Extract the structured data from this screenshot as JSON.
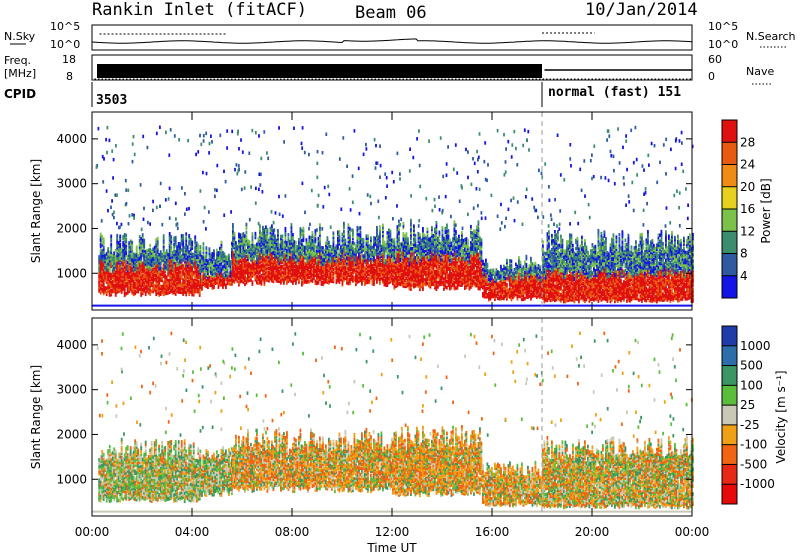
{
  "header": {
    "station": "Rankin Inlet (fitACF)",
    "beam": "Beam 06",
    "date": "10/Jan/2014"
  },
  "aux_panels": {
    "left_nsky": "N.Sky",
    "left_freq_1": "Freq.",
    "left_freq_2": "[MHz]",
    "cpid": "CPID",
    "right_nsearch": "N.Search",
    "right_nave": "Nave",
    "noise_ticks": [
      "10^5",
      "10^0"
    ],
    "freq_ticks": [
      "18",
      "8"
    ],
    "nave_ticks": [
      "60",
      "0"
    ],
    "cpid_label_1": "3503",
    "cpid_label_2": "normal (fast) 151"
  },
  "chart_data": [
    {
      "type": "heatmap",
      "panel": "power",
      "ylabel": "Slant Range [km]",
      "y_ticks": [
        "1000",
        "2000",
        "3000",
        "4000"
      ],
      "ylim": [
        180,
        4600
      ],
      "xlim": [
        0,
        24
      ],
      "colorbar": {
        "label": "Power [dB]",
        "ticks": [
          "4",
          "8",
          "12",
          "16",
          "20",
          "24",
          "28"
        ],
        "colors": [
          "#1414e6",
          "#2d5aa0",
          "#3c8c6e",
          "#7ac24a",
          "#e6d21e",
          "#f08c14",
          "#e85a10",
          "#e01010"
        ]
      },
      "bands": [
        {
          "x0": 0.25,
          "x1": 4.3,
          "lo": 550,
          "hi": 1650,
          "core": 0.55
        },
        {
          "x0": 4.3,
          "x1": 5.6,
          "lo": 700,
          "hi": 1500,
          "core": 0.3
        },
        {
          "x0": 5.6,
          "x1": 12.0,
          "lo": 800,
          "hi": 1850,
          "core": 0.5
        },
        {
          "x0": 12.0,
          "x1": 15.6,
          "lo": 700,
          "hi": 1900,
          "core": 0.55
        },
        {
          "x0": 15.6,
          "x1": 18.0,
          "lo": 450,
          "hi": 1200,
          "core": 0.6
        },
        {
          "x0": 18.0,
          "x1": 24.0,
          "lo": 400,
          "hi": 1700,
          "core": 0.45
        }
      ],
      "scatter_cells": 420
    },
    {
      "type": "heatmap",
      "panel": "velocity",
      "ylabel": "Slant Range [km]",
      "y_ticks": [
        "1000",
        "2000",
        "3000",
        "4000"
      ],
      "ylim": [
        180,
        4600
      ],
      "xlim": [
        0,
        24
      ],
      "colorbar": {
        "label": "Velocity [m s⁻¹]",
        "ticks": [
          "1000",
          "500",
          "100",
          "25",
          "-25",
          "-100",
          "-500",
          "-1000"
        ],
        "colors": [
          "#1e3caa",
          "#2d6eaa",
          "#3c9664",
          "#5abe3c",
          "#c8c8b4",
          "#f0a014",
          "#f06414",
          "#e62814",
          "#e60a0a"
        ]
      },
      "bands": [
        {
          "x0": 0.25,
          "x1": 4.3,
          "lo": 550,
          "hi": 1650,
          "core": 0.3
        },
        {
          "x0": 4.3,
          "x1": 5.6,
          "lo": 700,
          "hi": 1500,
          "core": 0.3
        },
        {
          "x0": 5.6,
          "x1": 12.0,
          "lo": 800,
          "hi": 1850,
          "core": 0.6
        },
        {
          "x0": 12.0,
          "x1": 15.6,
          "lo": 700,
          "hi": 1900,
          "core": 0.7
        },
        {
          "x0": 15.6,
          "x1": 18.0,
          "lo": 450,
          "hi": 1200,
          "core": 0.6
        },
        {
          "x0": 18.0,
          "x1": 24.0,
          "lo": 400,
          "hi": 1700,
          "core": 0.5
        }
      ],
      "scatter_cells": 260
    }
  ],
  "x_axis": {
    "ticks": [
      "00:00",
      "04:00",
      "08:00",
      "12:00",
      "16:00",
      "20:00",
      "00:00"
    ],
    "label": "Time UT",
    "mode_change_hour": 18.0
  }
}
